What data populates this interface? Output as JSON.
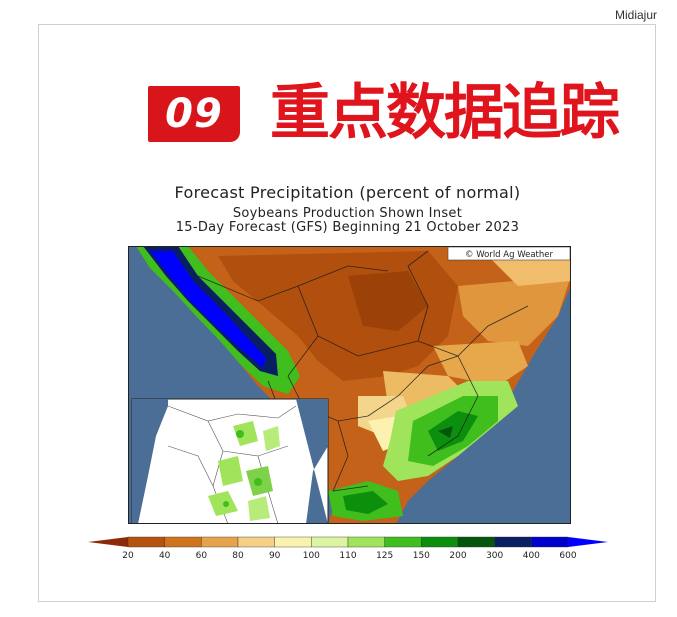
{
  "source": "Midiajur",
  "badge_number": "09",
  "headline": "重点数据追踪",
  "forecast": {
    "title": "Forecast Precipitation (percent of normal)",
    "subtitle": "Soybeans Production Shown Inset",
    "period": "15-Day Forecast (GFS) Beginning 21 October 2023",
    "credit": "© World Ag Weather"
  },
  "legend": {
    "ticks": [
      "20",
      "40",
      "60",
      "80",
      "90",
      "100",
      "110",
      "125",
      "150",
      "200",
      "300",
      "400",
      "600"
    ],
    "colors": [
      "#8b2a06",
      "#b5520f",
      "#d0741b",
      "#e5a44a",
      "#f4cf85",
      "#fbf2b0",
      "#dcf5a2",
      "#9fe45a",
      "#3fbe1d",
      "#0c8f0c",
      "#05560d",
      "#0a1f63",
      "#0000cc",
      "#0000ff"
    ]
  },
  "colors": {
    "brand_red": "#d9151c",
    "ocean": "#4a6e96"
  }
}
